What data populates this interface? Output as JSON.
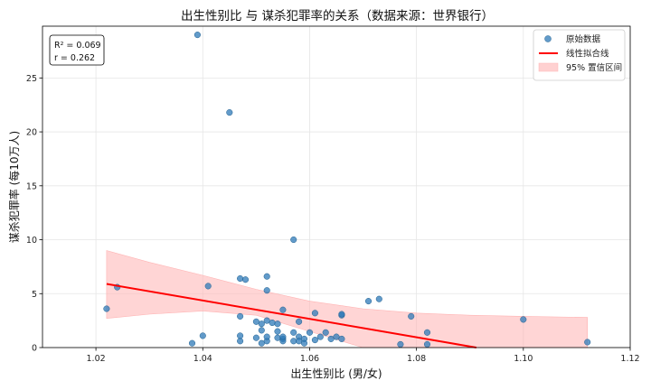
{
  "chart_data": {
    "type": "scatter",
    "title": "出生性别比 与 谋杀犯罪率的关系（数据来源：世界银行）",
    "xlabel": "出生性别比 (男/女)",
    "ylabel": "谋杀犯罪率 (每10万人)",
    "xlim": [
      1.01,
      1.12
    ],
    "ylim": [
      0,
      29.8
    ],
    "xticks": [
      1.02,
      1.04,
      1.06,
      1.08,
      1.1,
      1.12
    ],
    "xtick_labels": [
      "1.02",
      "1.04",
      "1.06",
      "1.08",
      "1.10",
      "1.12"
    ],
    "yticks": [
      0,
      5,
      10,
      15,
      20,
      25
    ],
    "ytick_labels": [
      "0",
      "5",
      "10",
      "15",
      "20",
      "25"
    ],
    "grid": true,
    "legend_position": "top-right",
    "legend": [
      "原始数据",
      "线性拟合线",
      "95% 置信区间"
    ],
    "stats": [
      "R² = 0.069",
      "r = 0.262"
    ],
    "colors": {
      "points": "#2e7ab8",
      "fit_line": "#ff0000",
      "band": "#ffb3b3"
    },
    "series": [
      {
        "name": "原始数据",
        "kind": "points",
        "points": [
          [
            1.022,
            3.6
          ],
          [
            1.024,
            5.6
          ],
          [
            1.038,
            0.4
          ],
          [
            1.039,
            29.0
          ],
          [
            1.04,
            1.1
          ],
          [
            1.041,
            5.7
          ],
          [
            1.045,
            21.8
          ],
          [
            1.047,
            6.4
          ],
          [
            1.047,
            0.6
          ],
          [
            1.047,
            1.1
          ],
          [
            1.047,
            2.9
          ],
          [
            1.048,
            6.3
          ],
          [
            1.05,
            2.4
          ],
          [
            1.05,
            0.9
          ],
          [
            1.051,
            0.4
          ],
          [
            1.051,
            2.2
          ],
          [
            1.051,
            1.6
          ],
          [
            1.052,
            0.6
          ],
          [
            1.052,
            6.6
          ],
          [
            1.052,
            5.3
          ],
          [
            1.052,
            1.0
          ],
          [
            1.052,
            2.5
          ],
          [
            1.053,
            2.3
          ],
          [
            1.054,
            1.5
          ],
          [
            1.054,
            2.2
          ],
          [
            1.054,
            0.9
          ],
          [
            1.055,
            3.5
          ],
          [
            1.055,
            0.8
          ],
          [
            1.055,
            0.6
          ],
          [
            1.055,
            1.0
          ],
          [
            1.057,
            10.0
          ],
          [
            1.057,
            0.6
          ],
          [
            1.057,
            1.4
          ],
          [
            1.058,
            1.0
          ],
          [
            1.058,
            2.4
          ],
          [
            1.058,
            0.6
          ],
          [
            1.059,
            0.8
          ],
          [
            1.059,
            0.4
          ],
          [
            1.06,
            1.4
          ],
          [
            1.061,
            0.7
          ],
          [
            1.061,
            3.2
          ],
          [
            1.062,
            1.0
          ],
          [
            1.063,
            1.4
          ],
          [
            1.064,
            0.8
          ],
          [
            1.065,
            1.0
          ],
          [
            1.066,
            3.0
          ],
          [
            1.066,
            0.8
          ],
          [
            1.066,
            3.1
          ],
          [
            1.071,
            4.3
          ],
          [
            1.073,
            4.5
          ],
          [
            1.077,
            0.3
          ],
          [
            1.079,
            2.9
          ],
          [
            1.082,
            1.4
          ],
          [
            1.082,
            0.3
          ],
          [
            1.1,
            2.6
          ],
          [
            1.112,
            0.5
          ]
        ]
      },
      {
        "name": "线性拟合线",
        "kind": "line",
        "points": [
          [
            1.022,
            5.9
          ],
          [
            1.0912,
            0.0
          ]
        ]
      },
      {
        "name": "95% 置信区间",
        "kind": "band",
        "x": [
          1.022,
          1.03,
          1.04,
          1.05,
          1.06,
          1.07,
          1.08,
          1.09,
          1.1,
          1.112
        ],
        "upper": [
          9.0,
          7.9,
          6.7,
          5.4,
          4.3,
          3.6,
          3.2,
          3.0,
          2.9,
          2.8
        ],
        "lower": [
          2.7,
          3.1,
          3.4,
          3.0,
          1.5,
          0.0,
          0.0,
          0.0,
          0.0,
          0.0
        ]
      }
    ]
  }
}
